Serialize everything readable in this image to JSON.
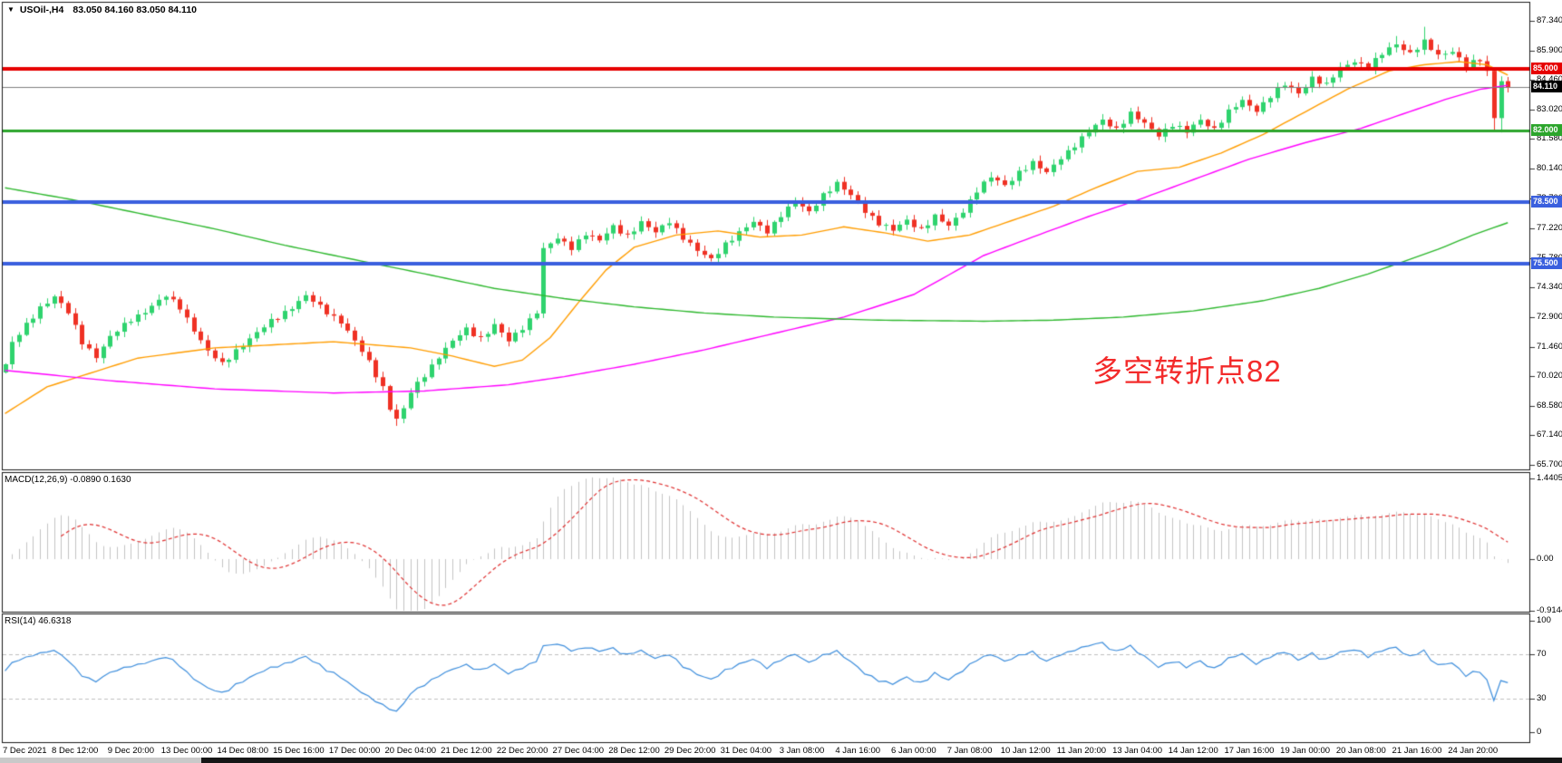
{
  "header": {
    "symbol_period": "USOil-,H4",
    "ohlc": "83.050 84.160 83.050 84.110"
  },
  "macd_panel": {
    "label": "MACD(12,26,9) -0.0890 0.1630"
  },
  "rsi_panel": {
    "label": "RSI(14) 46.6318"
  },
  "chart_data": {
    "type": "candlestick",
    "symbol": "USOil",
    "timeframe": "H4",
    "current_bar": {
      "open": 83.05,
      "high": 84.16,
      "low": 83.05,
      "close": 84.11
    },
    "bars": {
      "count": 216,
      "bars_per_x_label": 8
    },
    "price_axis": {
      "ticks": [
        "87.340",
        "85.900",
        "84.460",
        "83.020",
        "81.580",
        "80.140",
        "78.700",
        "77.220",
        "75.780",
        "74.340",
        "72.900",
        "71.460",
        "70.020",
        "68.580",
        "67.140",
        "65.700"
      ],
      "tick_values": [
        87.34,
        85.9,
        84.46,
        83.02,
        81.58,
        80.14,
        78.7,
        77.22,
        75.78,
        74.34,
        72.9,
        71.46,
        70.02,
        68.58,
        67.14,
        65.7
      ]
    },
    "x_labels": [
      "7 Dec 2021",
      "8 Dec 12:00",
      "9 Dec 20:00",
      "13 Dec 00:00",
      "14 Dec 08:00",
      "15 Dec 16:00",
      "17 Dec 00:00",
      "20 Dec 04:00",
      "21 Dec 12:00",
      "22 Dec 20:00",
      "27 Dec 04:00",
      "28 Dec 12:00",
      "29 Dec 20:00",
      "31 Dec 04:00",
      "3 Jan 08:00",
      "4 Jan 16:00",
      "6 Jan 00:00",
      "7 Jan 08:00",
      "10 Jan 12:00",
      "11 Jan 20:00",
      "13 Jan 04:00",
      "14 Jan 12:00",
      "17 Jan 16:00",
      "19 Jan 00:00",
      "20 Jan 08:00",
      "21 Jan 16:00",
      "24 Jan 20:00"
    ],
    "close_anchors": [
      [
        0,
        70.6
      ],
      [
        1,
        71.6
      ],
      [
        3,
        72.5
      ],
      [
        5,
        73.4
      ],
      [
        7,
        73.9
      ],
      [
        9,
        73.1
      ],
      [
        11,
        71.7
      ],
      [
        13,
        71.0
      ],
      [
        15,
        71.9
      ],
      [
        18,
        72.8
      ],
      [
        20,
        73.2
      ],
      [
        23,
        73.9
      ],
      [
        25,
        73.4
      ],
      [
        27,
        72.3
      ],
      [
        29,
        71.2
      ],
      [
        31,
        70.6
      ],
      [
        33,
        71.3
      ],
      [
        36,
        72.1
      ],
      [
        38,
        72.7
      ],
      [
        41,
        73.4
      ],
      [
        43,
        73.9
      ],
      [
        45,
        73.4
      ],
      [
        48,
        72.7
      ],
      [
        50,
        71.7
      ],
      [
        52,
        70.7
      ],
      [
        54,
        69.5
      ],
      [
        55,
        68.5
      ],
      [
        56,
        67.9
      ],
      [
        57,
        68.4
      ],
      [
        58,
        69.2
      ],
      [
        60,
        70.1
      ],
      [
        62,
        71.0
      ],
      [
        64,
        71.7
      ],
      [
        66,
        72.3
      ],
      [
        68,
        71.9
      ],
      [
        70,
        72.5
      ],
      [
        72,
        71.7
      ],
      [
        74,
        72.4
      ],
      [
        76,
        73.2
      ],
      [
        77,
        76.2
      ],
      [
        79,
        76.7
      ],
      [
        81,
        76.3
      ],
      [
        83,
        77.0
      ],
      [
        85,
        76.6
      ],
      [
        87,
        77.3
      ],
      [
        89,
        76.9
      ],
      [
        91,
        77.5
      ],
      [
        93,
        77.0
      ],
      [
        95,
        77.6
      ],
      [
        97,
        76.8
      ],
      [
        99,
        76.1
      ],
      [
        101,
        75.7
      ],
      [
        103,
        76.5
      ],
      [
        105,
        77.0
      ],
      [
        107,
        77.5
      ],
      [
        109,
        77.1
      ],
      [
        111,
        77.9
      ],
      [
        113,
        78.5
      ],
      [
        115,
        78.0
      ],
      [
        117,
        78.9
      ],
      [
        119,
        79.4
      ],
      [
        121,
        78.8
      ],
      [
        123,
        78.1
      ],
      [
        125,
        77.5
      ],
      [
        127,
        77.1
      ],
      [
        129,
        77.6
      ],
      [
        131,
        77.2
      ],
      [
        133,
        77.8
      ],
      [
        135,
        77.3
      ],
      [
        137,
        78.1
      ],
      [
        139,
        79.1
      ],
      [
        141,
        79.7
      ],
      [
        143,
        79.3
      ],
      [
        145,
        80.0
      ],
      [
        147,
        80.4
      ],
      [
        149,
        79.9
      ],
      [
        151,
        80.7
      ],
      [
        153,
        81.3
      ],
      [
        155,
        81.9
      ],
      [
        157,
        82.5
      ],
      [
        159,
        82.1
      ],
      [
        161,
        82.8
      ],
      [
        163,
        82.3
      ],
      [
        165,
        81.8
      ],
      [
        167,
        82.3
      ],
      [
        169,
        81.9
      ],
      [
        171,
        82.5
      ],
      [
        173,
        82.1
      ],
      [
        175,
        82.9
      ],
      [
        177,
        83.4
      ],
      [
        179,
        83.0
      ],
      [
        181,
        83.7
      ],
      [
        183,
        84.2
      ],
      [
        185,
        83.8
      ],
      [
        187,
        84.6
      ],
      [
        189,
        84.2
      ],
      [
        191,
        85.0
      ],
      [
        193,
        85.4
      ],
      [
        195,
        85.1
      ],
      [
        197,
        85.7
      ],
      [
        199,
        86.2
      ],
      [
        201,
        85.8
      ],
      [
        203,
        86.3
      ],
      [
        205,
        85.6
      ],
      [
        207,
        85.9
      ],
      [
        209,
        85.2
      ],
      [
        211,
        85.4
      ],
      [
        212,
        84.8
      ],
      [
        213,
        82.6
      ],
      [
        214,
        84.4
      ],
      [
        215,
        84.11
      ]
    ],
    "high_overrides": [
      [
        199,
        86.6
      ],
      [
        203,
        87.05
      ]
    ],
    "low_overrides": [
      [
        56,
        67.6
      ],
      [
        57,
        67.9
      ],
      [
        213,
        81.95
      ],
      [
        214,
        81.9
      ]
    ],
    "candle_up_color": "#2fd36e",
    "candle_down_color": "#ef3124",
    "moving_averages": [
      {
        "name": "ma-fast",
        "color": "#ff9d00",
        "points": [
          [
            0,
            68.2
          ],
          [
            6,
            69.5
          ],
          [
            19,
            70.9
          ],
          [
            30,
            71.4
          ],
          [
            47,
            71.7
          ],
          [
            58,
            71.4
          ],
          [
            64,
            71.0
          ],
          [
            70,
            70.5
          ],
          [
            74,
            70.8
          ],
          [
            78,
            71.9
          ],
          [
            82,
            73.6
          ],
          [
            86,
            75.2
          ],
          [
            90,
            76.3
          ],
          [
            96,
            76.9
          ],
          [
            102,
            77.1
          ],
          [
            108,
            76.8
          ],
          [
            114,
            76.9
          ],
          [
            120,
            77.3
          ],
          [
            126,
            77.0
          ],
          [
            132,
            76.6
          ],
          [
            138,
            76.9
          ],
          [
            144,
            77.6
          ],
          [
            150,
            78.3
          ],
          [
            156,
            79.2
          ],
          [
            162,
            80.0
          ],
          [
            168,
            80.2
          ],
          [
            174,
            80.9
          ],
          [
            180,
            81.8
          ],
          [
            186,
            82.9
          ],
          [
            192,
            84.0
          ],
          [
            198,
            84.9
          ],
          [
            203,
            85.2
          ],
          [
            208,
            85.35
          ],
          [
            212,
            85.2
          ],
          [
            215,
            84.7
          ]
        ]
      },
      {
        "name": "ma-mid",
        "color": "#ff00ff",
        "points": [
          [
            0,
            70.3
          ],
          [
            15,
            69.8
          ],
          [
            30,
            69.4
          ],
          [
            47,
            69.2
          ],
          [
            60,
            69.3
          ],
          [
            72,
            69.6
          ],
          [
            80,
            70.0
          ],
          [
            90,
            70.6
          ],
          [
            100,
            71.3
          ],
          [
            110,
            72.1
          ],
          [
            120,
            72.9
          ],
          [
            130,
            74.0
          ],
          [
            140,
            75.9
          ],
          [
            147,
            76.8
          ],
          [
            155,
            77.8
          ],
          [
            162,
            78.6
          ],
          [
            170,
            79.6
          ],
          [
            178,
            80.6
          ],
          [
            186,
            81.4
          ],
          [
            194,
            82.1
          ],
          [
            200,
            82.8
          ],
          [
            206,
            83.5
          ],
          [
            211,
            84.0
          ],
          [
            215,
            84.2
          ]
        ]
      },
      {
        "name": "ma-slow",
        "color": "#2eb82e",
        "points": [
          [
            0,
            79.2
          ],
          [
            10,
            78.6
          ],
          [
            20,
            77.9
          ],
          [
            30,
            77.2
          ],
          [
            40,
            76.4
          ],
          [
            50,
            75.7
          ],
          [
            58,
            75.15
          ],
          [
            70,
            74.3
          ],
          [
            80,
            73.8
          ],
          [
            90,
            73.4
          ],
          [
            100,
            73.1
          ],
          [
            110,
            72.9
          ],
          [
            125,
            72.75
          ],
          [
            140,
            72.7
          ],
          [
            150,
            72.75
          ],
          [
            160,
            72.9
          ],
          [
            170,
            73.2
          ],
          [
            180,
            73.7
          ],
          [
            188,
            74.3
          ],
          [
            195,
            75.0
          ],
          [
            200,
            75.6
          ],
          [
            205,
            76.2
          ],
          [
            210,
            76.9
          ],
          [
            215,
            77.5
          ]
        ]
      }
    ],
    "hlines": [
      {
        "name": "resistance-85000",
        "label": "85.000",
        "value": 85.0,
        "line_color": "#e60000",
        "line_width": 4,
        "badge_bg": "#e60000",
        "badge_fg": "#ffffff"
      },
      {
        "name": "current-price",
        "label": "84.110",
        "value": 84.11,
        "line_color": "#7f7f7f",
        "line_width": 1,
        "badge_bg": "#000000",
        "badge_fg": "#ffffff"
      },
      {
        "name": "pivot-82000",
        "label": "82.000",
        "value": 82.0,
        "line_color": "#2ca52c",
        "line_width": 3,
        "badge_bg": "#2ca52c",
        "badge_fg": "#ffffff"
      },
      {
        "name": "support-78500",
        "label": "78.500",
        "value": 78.5,
        "line_color": "#3a5fde",
        "line_width": 4,
        "badge_bg": "#3a5fde",
        "badge_fg": "#ffffff"
      },
      {
        "name": "support-75500",
        "label": "75.500",
        "value": 75.5,
        "line_color": "#3a5fde",
        "line_width": 4,
        "badge_bg": "#3a5fde",
        "badge_fg": "#ffffff"
      }
    ],
    "macd": {
      "fast": 12,
      "slow": 26,
      "signal": 9,
      "value": -0.089,
      "signal_value": 0.163,
      "axis_ticks": [
        "1.4405",
        "0.00",
        "-0.9144"
      ],
      "tick_values": [
        1.4405,
        0,
        -0.9144
      ],
      "hist_color": "#c4c4c4",
      "signal_color": "#e03131"
    },
    "rsi": {
      "period": 14,
      "value": 46.6318,
      "axis_ticks": [
        "100",
        "70",
        "30",
        "0"
      ],
      "tick_values": [
        100,
        70,
        30,
        0
      ],
      "levels": [
        70,
        30
      ],
      "line_color": "#3f8fdd",
      "level_color": "#c0c0c0"
    },
    "annotation": {
      "text": "多空转折点82",
      "color": "#f32b2b"
    }
  }
}
